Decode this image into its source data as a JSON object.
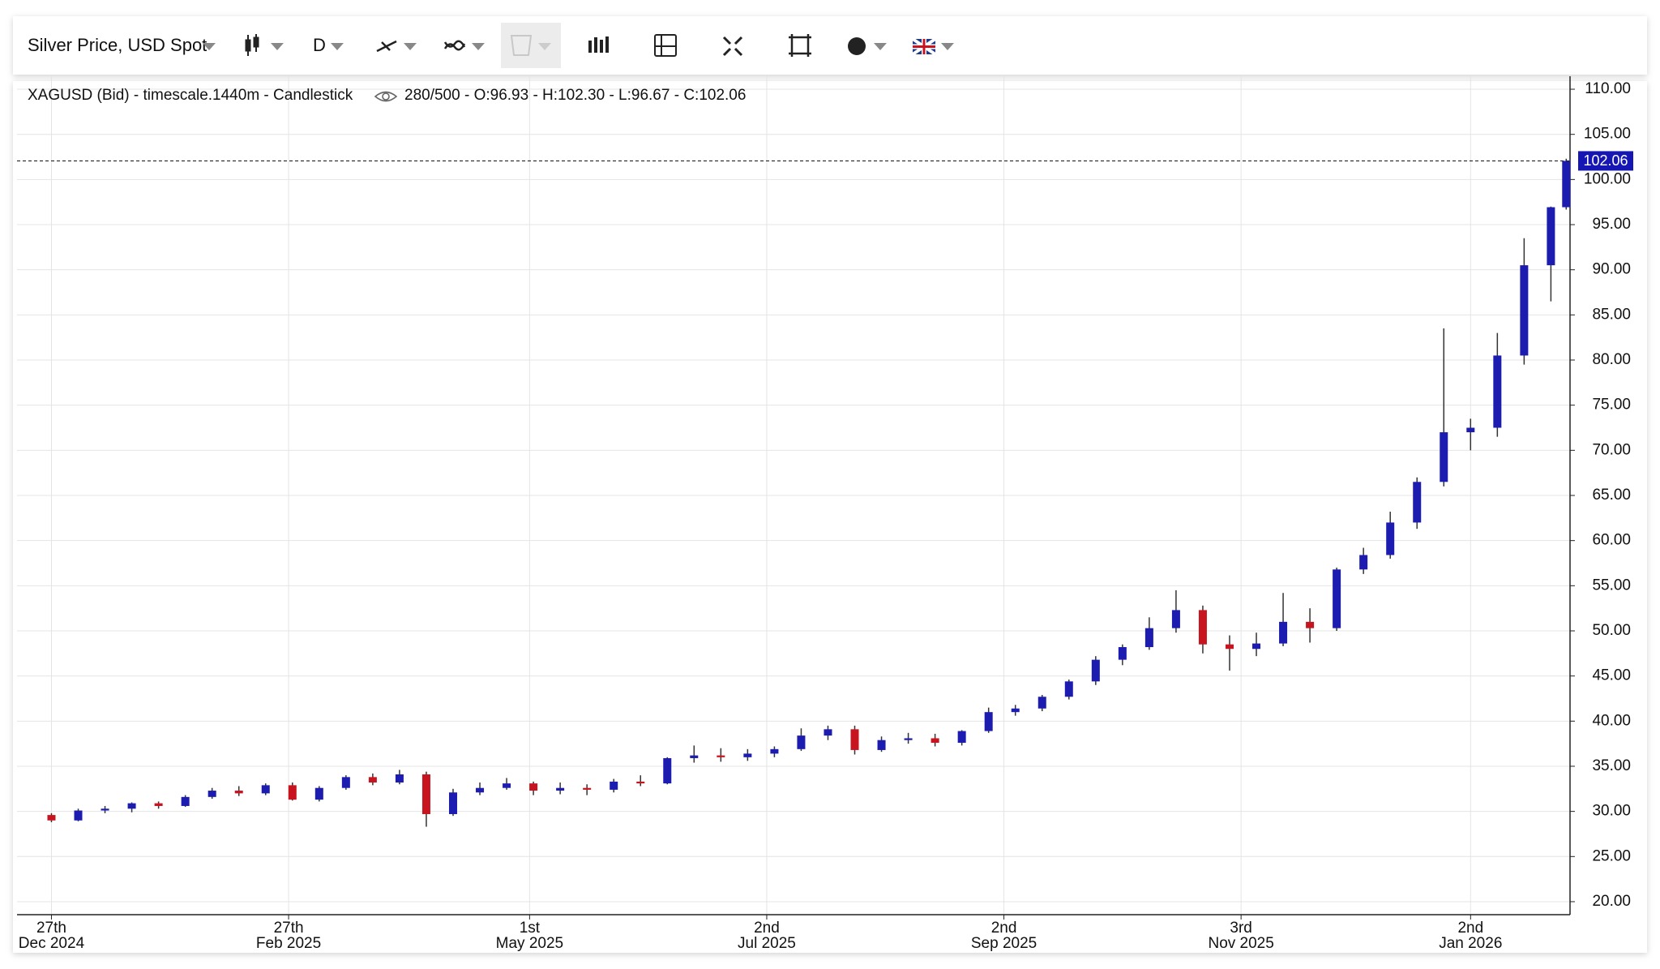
{
  "toolbar": {
    "instrument": "Silver Price, USD Spot",
    "interval": "D"
  },
  "chart_data": {
    "type": "candlestick",
    "info_left": "XAGUSD (Bid) - timescale.1440m - Candlestick",
    "info_right": "280/500 - O:96.93 - H:102.30 - L:96.67 - C:102.06",
    "x": [
      "2024-12-27",
      "2025-01-03",
      "2025-01-10",
      "2025-01-17",
      "2025-01-24",
      "2025-01-31",
      "2025-02-07",
      "2025-02-14",
      "2025-02-21",
      "2025-02-28",
      "2025-03-07",
      "2025-03-14",
      "2025-03-21",
      "2025-03-28",
      "2025-04-04",
      "2025-04-11",
      "2025-04-18",
      "2025-04-25",
      "2025-05-02",
      "2025-05-09",
      "2025-05-16",
      "2025-05-23",
      "2025-05-30",
      "2025-06-06",
      "2025-06-13",
      "2025-06-20",
      "2025-06-27",
      "2025-07-04",
      "2025-07-11",
      "2025-07-18",
      "2025-07-25",
      "2025-08-01",
      "2025-08-08",
      "2025-08-15",
      "2025-08-22",
      "2025-08-29",
      "2025-09-05",
      "2025-09-12",
      "2025-09-19",
      "2025-09-26",
      "2025-10-03",
      "2025-10-10",
      "2025-10-17",
      "2025-10-24",
      "2025-10-31",
      "2025-11-07",
      "2025-11-14",
      "2025-11-21",
      "2025-11-28",
      "2025-12-05",
      "2025-12-12",
      "2025-12-19",
      "2025-12-26",
      "2026-01-02",
      "2026-01-09",
      "2026-01-16",
      "2026-01-23",
      "2026-01-27"
    ],
    "open": [
      29.6,
      29.0,
      30.1,
      30.3,
      30.9,
      30.6,
      31.6,
      32.3,
      32.0,
      32.9,
      31.3,
      32.6,
      33.8,
      33.2,
      34.1,
      29.7,
      32.1,
      32.6,
      33.1,
      32.3,
      32.6,
      32.4,
      33.3,
      33.1,
      35.9,
      36.2,
      36.0,
      36.4,
      36.9,
      38.4,
      39.1,
      36.8,
      37.9,
      38.1,
      37.6,
      38.9,
      41.0,
      41.4,
      42.7,
      44.4,
      46.8,
      48.2,
      50.3,
      52.3,
      48.5,
      48.0,
      48.6,
      51.0,
      50.3,
      56.8,
      58.4,
      62.0,
      66.5,
      72.0,
      72.5,
      80.5,
      90.5,
      96.93
    ],
    "high": [
      29.8,
      30.3,
      30.6,
      31.0,
      31.1,
      31.8,
      32.6,
      32.8,
      33.1,
      33.2,
      32.8,
      34.0,
      34.2,
      34.6,
      34.4,
      32.5,
      33.2,
      33.7,
      33.3,
      33.2,
      33.0,
      33.6,
      34.0,
      36.0,
      37.3,
      37.0,
      36.9,
      37.2,
      39.2,
      39.5,
      39.5,
      38.3,
      38.7,
      38.6,
      39.0,
      41.5,
      41.8,
      42.9,
      44.6,
      47.2,
      48.5,
      51.5,
      54.5,
      52.8,
      49.5,
      49.8,
      54.2,
      52.5,
      57.0,
      59.2,
      63.2,
      67.0,
      83.5,
      73.5,
      83.0,
      93.5,
      97.0,
      102.3
    ],
    "low": [
      28.8,
      28.9,
      29.8,
      29.9,
      30.3,
      30.5,
      31.4,
      31.7,
      31.8,
      31.2,
      31.1,
      32.4,
      32.9,
      33.0,
      28.3,
      29.5,
      31.8,
      32.4,
      31.8,
      31.9,
      31.8,
      32.1,
      32.8,
      33.0,
      35.4,
      35.5,
      35.6,
      36.0,
      36.7,
      37.9,
      36.3,
      36.6,
      37.5,
      37.2,
      37.3,
      38.7,
      40.6,
      41.1,
      42.4,
      44.0,
      46.2,
      47.9,
      49.8,
      47.5,
      45.6,
      47.2,
      48.3,
      48.7,
      50.0,
      56.3,
      58.0,
      61.3,
      66.0,
      70.0,
      71.5,
      79.5,
      86.5,
      96.67
    ],
    "close": [
      29.0,
      30.1,
      30.3,
      30.9,
      30.6,
      31.6,
      32.3,
      32.0,
      32.9,
      31.3,
      32.6,
      33.8,
      33.2,
      34.1,
      29.7,
      32.1,
      32.6,
      33.1,
      32.3,
      32.6,
      32.4,
      33.3,
      33.1,
      35.9,
      36.2,
      36.0,
      36.4,
      36.9,
      38.4,
      39.1,
      36.8,
      37.9,
      38.1,
      37.6,
      38.9,
      41.0,
      41.4,
      42.7,
      44.4,
      46.8,
      48.2,
      50.3,
      52.3,
      48.5,
      48.0,
      48.6,
      51.0,
      50.3,
      56.8,
      58.4,
      62.0,
      66.5,
      72.0,
      72.5,
      80.5,
      90.5,
      96.93,
      102.06
    ],
    "up_color": "#1c1cb0",
    "down_color": "#c8141e",
    "last_price": 102.06,
    "xlim": [
      "2024-12-18",
      "2026-01-28"
    ],
    "xticks": [
      {
        "value": "2024-12-27",
        "label": [
          "27th",
          "Dec 2024"
        ]
      },
      {
        "value": "2025-02-27",
        "label": [
          "27th",
          "Feb 2025"
        ]
      },
      {
        "value": "2025-05-01",
        "label": [
          "1st",
          "May 2025"
        ]
      },
      {
        "value": "2025-07-02",
        "label": [
          "2nd",
          "Jul 2025"
        ]
      },
      {
        "value": "2025-09-02",
        "label": [
          "2nd",
          "Sep 2025"
        ]
      },
      {
        "value": "2025-11-03",
        "label": [
          "3rd",
          "Nov 2025"
        ]
      },
      {
        "value": "2026-01-02",
        "label": [
          "2nd",
          "Jan 2026"
        ]
      }
    ],
    "ylim": [
      18.56,
      111.44
    ],
    "yticks": [
      {
        "value": 20,
        "label": "20.00"
      },
      {
        "value": 25,
        "label": "25.00"
      },
      {
        "value": 30,
        "label": "30.00"
      },
      {
        "value": 35,
        "label": "35.00"
      },
      {
        "value": 40,
        "label": "40.00"
      },
      {
        "value": 45,
        "label": "45.00"
      },
      {
        "value": 50,
        "label": "50.00"
      },
      {
        "value": 55,
        "label": "55.00"
      },
      {
        "value": 60,
        "label": "60.00"
      },
      {
        "value": 65,
        "label": "65.00"
      },
      {
        "value": 70,
        "label": "70.00"
      },
      {
        "value": 75,
        "label": "75.00"
      },
      {
        "value": 80,
        "label": "80.00"
      },
      {
        "value": 85,
        "label": "85.00"
      },
      {
        "value": 90,
        "label": "90.00"
      },
      {
        "value": 95,
        "label": "95.00"
      },
      {
        "value": 100,
        "label": "100.00"
      },
      {
        "value": 105,
        "label": "105.00"
      },
      {
        "value": 110,
        "label": "110.00"
      }
    ],
    "grid": true
  }
}
